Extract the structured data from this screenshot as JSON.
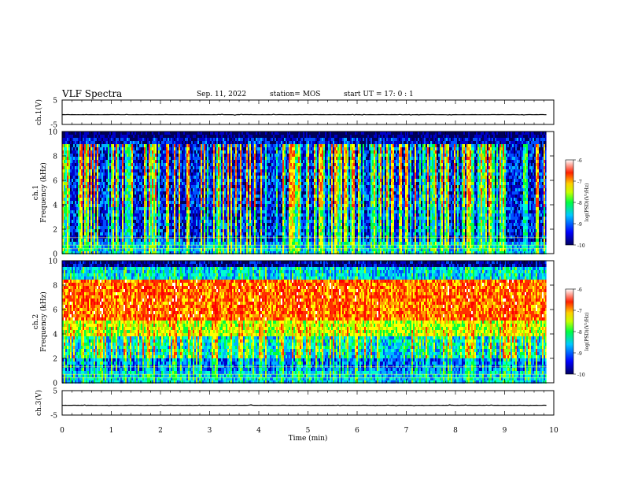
{
  "header": {
    "title": "VLF Spectra",
    "date": "Sep. 11, 2022",
    "station": "station= MOS",
    "start": "start  UT =   17: 0  : 1"
  },
  "chart_data": [
    {
      "type": "line",
      "panel": "ch1-waveform",
      "ylabel": "ch.1(V)",
      "ylim": [
        -5,
        5
      ],
      "yticks": [
        "5",
        "-5"
      ],
      "series": [
        {
          "values_description_level": -1,
          "values": [
            -1,
            -1,
            -1,
            -1,
            -1,
            -1,
            -1,
            -1,
            -1,
            -1
          ]
        }
      ],
      "xlim": [
        0,
        10
      ]
    },
    {
      "type": "heatmap",
      "panel": "ch1-spectrogram",
      "ylabel": "ch.1\nFrequency (kHz)",
      "ylim": [
        0,
        10
      ],
      "yticks": [
        "0",
        "2",
        "4",
        "6",
        "8",
        "10"
      ],
      "xlim": [
        0,
        10
      ],
      "data_end_min": 9.85,
      "colorbar": {
        "label": "log(PSD)(V²/Hz)",
        "range": [
          -10,
          -6
        ],
        "ticks": [
          "-6",
          "-7",
          "-8",
          "-9",
          "-10"
        ]
      }
    },
    {
      "type": "heatmap",
      "panel": "ch2-spectrogram",
      "ylabel": "ch.2\nFrequency (kHz)",
      "ylim": [
        0,
        10
      ],
      "yticks": [
        "0",
        "2",
        "4",
        "6",
        "8",
        "10"
      ],
      "xlim": [
        0,
        10
      ],
      "data_end_min": 9.85,
      "colorbar": {
        "label": "log(PSD)(V²/Hz)",
        "range": [
          -10,
          -6
        ],
        "ticks": [
          "-6",
          "-7",
          "-8",
          "-9",
          "-10"
        ]
      }
    },
    {
      "type": "line",
      "panel": "ch3-waveform",
      "ylabel": "ch.3(V)",
      "ylim": [
        -5,
        5
      ],
      "yticks": [
        "5",
        "-5"
      ],
      "series": [
        {
          "values": [
            -1,
            -1,
            -1,
            -1,
            -1,
            -1,
            -1,
            -1,
            -1,
            -1
          ]
        }
      ],
      "xlim": [
        0,
        10
      ],
      "xlabel": "Time (min)",
      "xticks": [
        "0",
        "1",
        "2",
        "3",
        "4",
        "5",
        "6",
        "7",
        "8",
        "9",
        "10"
      ]
    }
  ],
  "colors": {
    "scale": [
      "#00006a",
      "#0000ff",
      "#00aaff",
      "#00ffcc",
      "#00ff00",
      "#ccff00",
      "#ffff00",
      "#ff8800",
      "#ff0000",
      "#ffffff"
    ]
  }
}
